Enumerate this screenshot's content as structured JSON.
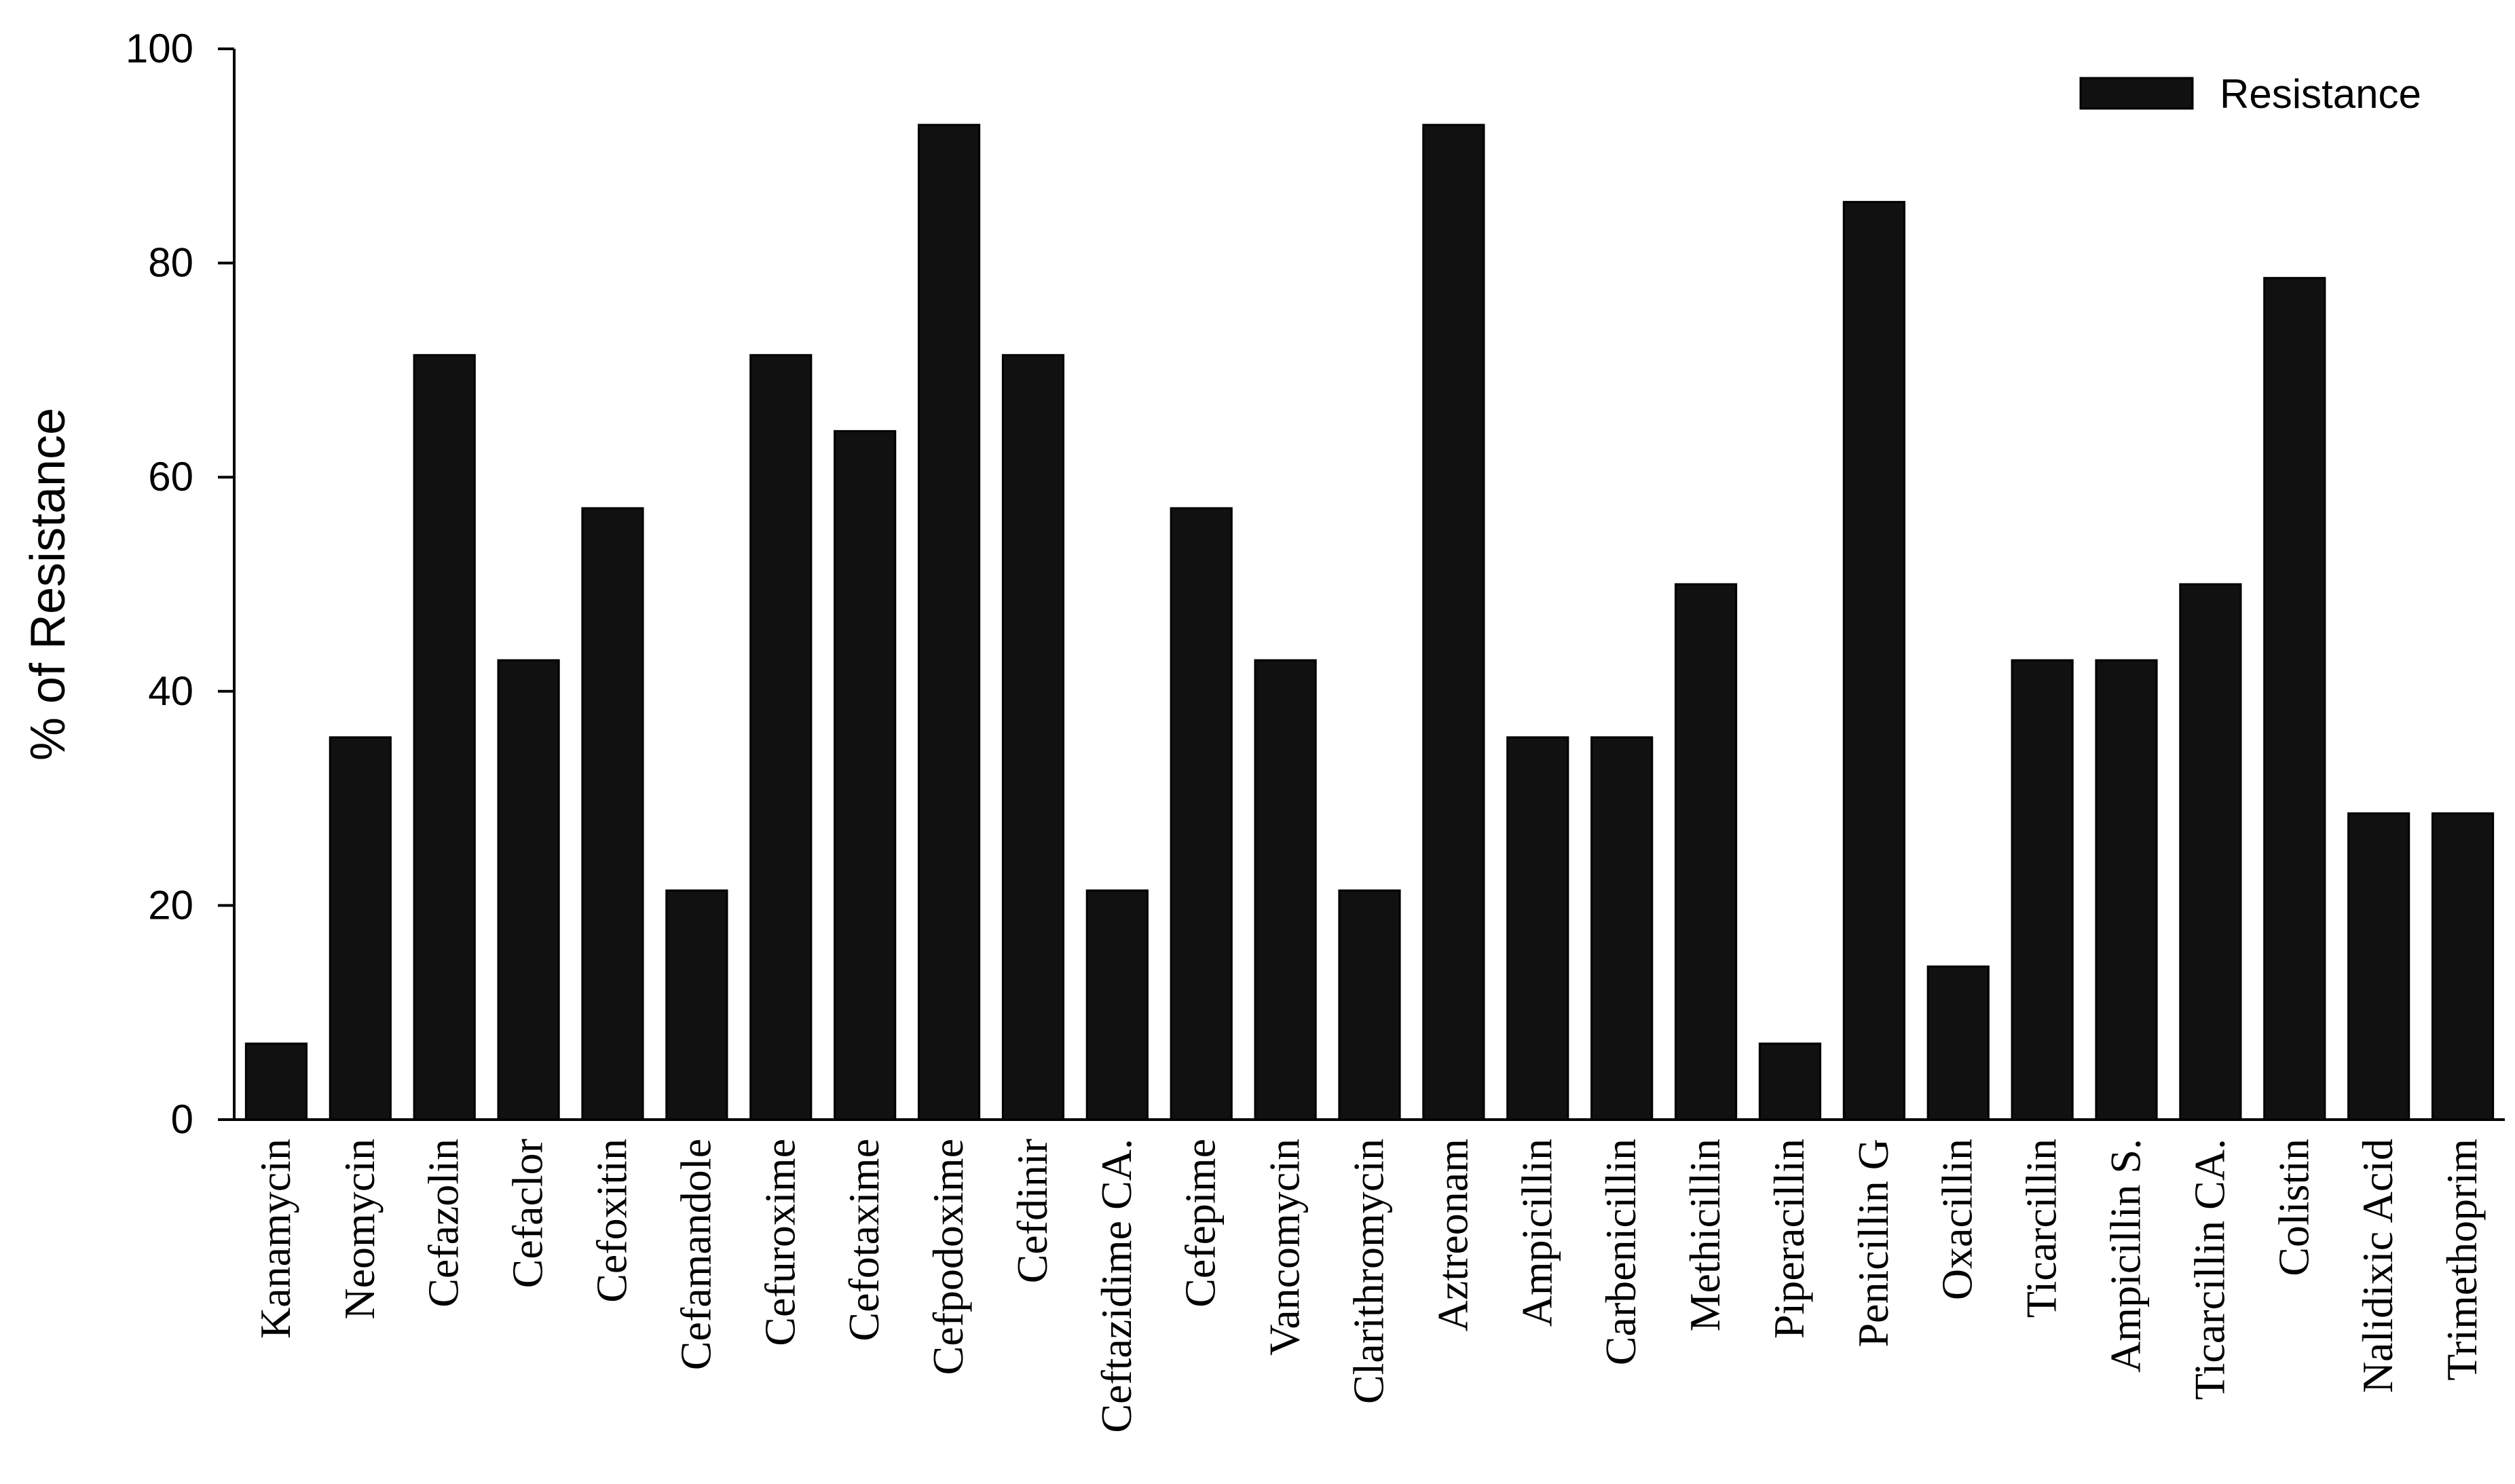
{
  "chart_data": {
    "type": "bar",
    "title": "",
    "xlabel": "",
    "ylabel": "% of Resistance",
    "ylim": [
      0,
      100
    ],
    "yticks": [
      0,
      20,
      40,
      60,
      80,
      100
    ],
    "grid": false,
    "legend_position": "top-right",
    "bar_color": "#111111",
    "categories": [
      "Kanamycin",
      "Neomycin",
      "Cefazolin",
      "Cefaclor",
      "Cefoxitin",
      "Cefamandole",
      "Cefuroxime",
      "Cefotaxime",
      "Cefpodoxime",
      "Cefdinir",
      "Ceftazidime CA.",
      "Cefepime",
      "Vancomycin",
      "Clarithromycin",
      "Aztreonam",
      "Ampicillin",
      "Carbenicillin",
      "Methicillin",
      "Piperacillin",
      "Penicillin  G",
      "Oxacillin",
      "Ticarcillin",
      "Ampicillin  S.",
      "Ticarcillin  CA.",
      "Colistin",
      "Nalidixic Acid",
      "Trimethoprim"
    ],
    "series": [
      {
        "name": "Resistance",
        "values": [
          7.1,
          35.7,
          71.4,
          42.9,
          57.1,
          21.4,
          71.4,
          64.3,
          92.9,
          71.4,
          21.4,
          57.1,
          42.9,
          21.4,
          92.9,
          35.7,
          35.7,
          50.0,
          7.1,
          85.7,
          14.3,
          42.9,
          42.9,
          50.0,
          78.6,
          28.6,
          28.6
        ]
      }
    ]
  }
}
